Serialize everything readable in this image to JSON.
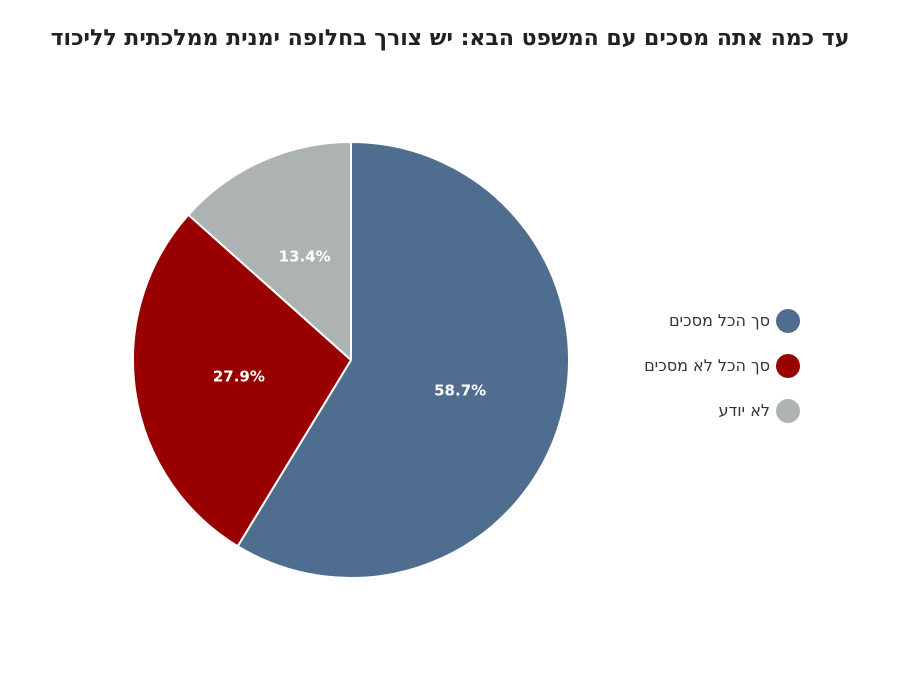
{
  "chart_data": {
    "type": "pie",
    "title": "עד כמה אתה מסכים עם המשפט הבא: יש צורך בחלופה ימנית ממלכתית לליכוד",
    "categories": [
      "סך הכל מסכים",
      "סך הכל לא מסכים",
      "לא יודע"
    ],
    "values": [
      58.7,
      27.9,
      13.4
    ],
    "data_labels": [
      "58.7%",
      "27.9%",
      "13.4%"
    ],
    "colors": [
      "#4f6e8f",
      "#990000",
      "#adb3b3"
    ],
    "legend_position": "right",
    "start_angle": "12 o'clock",
    "direction": "clockwise"
  }
}
